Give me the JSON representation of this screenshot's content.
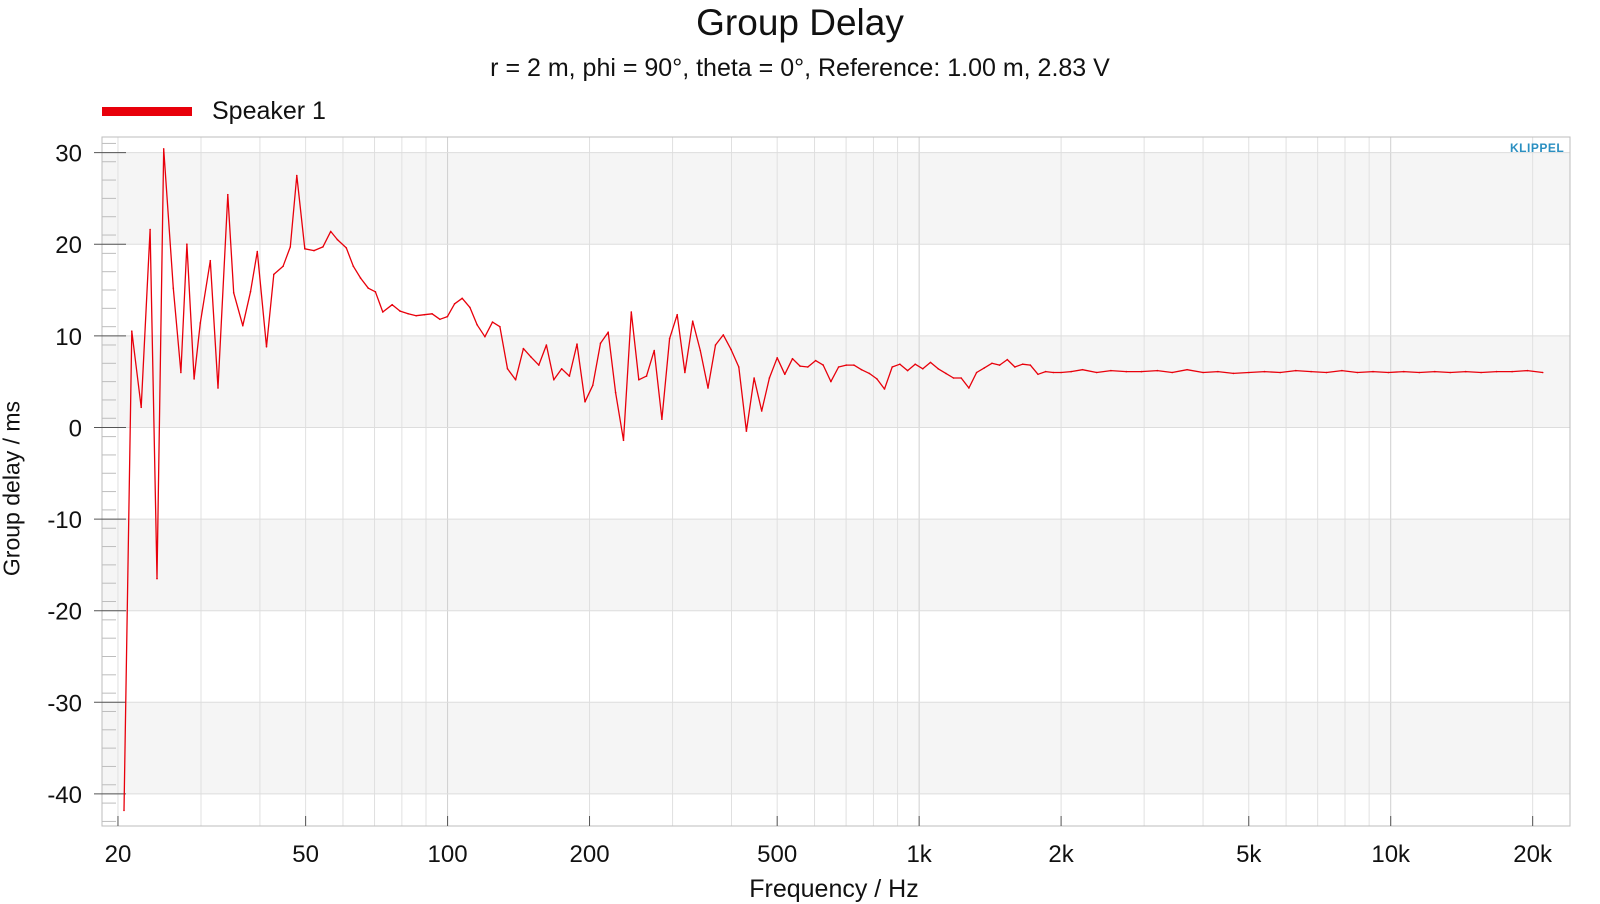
{
  "chart_data": {
    "type": "line",
    "title": "Group Delay",
    "subtitle": "r = 2 m, phi = 90°, theta = 0°, Reference: 1.00 m, 2.83 V",
    "xlabel": "Frequency / Hz",
    "ylabel": "Group delay / ms",
    "x_scale": "log",
    "xlim": [
      18.5,
      24000
    ],
    "ylim": [
      -43.5,
      31.7
    ],
    "grid": true,
    "legend_placement": "top-left",
    "logo_text": "KLIPPEL",
    "x_ticks": [
      {
        "value": 20,
        "label": "20"
      },
      {
        "value": 50,
        "label": "50"
      },
      {
        "value": 100,
        "label": "100"
      },
      {
        "value": 200,
        "label": "200"
      },
      {
        "value": 500,
        "label": "500"
      },
      {
        "value": 1000,
        "label": "1k"
      },
      {
        "value": 2000,
        "label": "2k"
      },
      {
        "value": 5000,
        "label": "5k"
      },
      {
        "value": 10000,
        "label": "10k"
      },
      {
        "value": 20000,
        "label": "20k"
      }
    ],
    "y_ticks": [
      {
        "value": 30,
        "label": "30"
      },
      {
        "value": 20,
        "label": "20"
      },
      {
        "value": 10,
        "label": "10"
      },
      {
        "value": 0,
        "label": "0"
      },
      {
        "value": -10,
        "label": "-10"
      },
      {
        "value": -20,
        "label": "-20"
      },
      {
        "value": -30,
        "label": "-30"
      },
      {
        "value": -40,
        "label": "-40"
      }
    ],
    "series": [
      {
        "name": "Speaker 1",
        "color": "#e8000b",
        "points": [
          [
            20.6,
            -41.8
          ],
          [
            21.4,
            10.5
          ],
          [
            22.4,
            2.2
          ],
          [
            23.4,
            21.6
          ],
          [
            24.2,
            -16.5
          ],
          [
            25.0,
            30.4
          ],
          [
            26.2,
            15.2
          ],
          [
            27.2,
            6.0
          ],
          [
            28.0,
            20.0
          ],
          [
            29.0,
            5.3
          ],
          [
            29.9,
            11.4
          ],
          [
            31.4,
            18.2
          ],
          [
            32.6,
            4.3
          ],
          [
            34.2,
            25.4
          ],
          [
            35.2,
            14.7
          ],
          [
            36.8,
            11.1
          ],
          [
            38.2,
            14.8
          ],
          [
            39.5,
            19.2
          ],
          [
            41.3,
            8.8
          ],
          [
            42.8,
            16.7
          ],
          [
            44.8,
            17.6
          ],
          [
            46.4,
            19.7
          ],
          [
            47.9,
            27.5
          ],
          [
            49.8,
            19.5
          ],
          [
            52.1,
            19.3
          ],
          [
            54.4,
            19.7
          ],
          [
            56.5,
            21.4
          ],
          [
            58.4,
            20.5
          ],
          [
            61.0,
            19.6
          ],
          [
            63.1,
            17.6
          ],
          [
            65.4,
            16.3
          ],
          [
            67.9,
            15.2
          ],
          [
            70.3,
            14.8
          ],
          [
            72.9,
            12.6
          ],
          [
            76.3,
            13.4
          ],
          [
            79.3,
            12.7
          ],
          [
            82.5,
            12.4
          ],
          [
            85.8,
            12.2
          ],
          [
            89.3,
            12.3
          ],
          [
            92.7,
            12.4
          ],
          [
            96.3,
            11.8
          ],
          [
            99.9,
            12.1
          ],
          [
            103.5,
            13.5
          ],
          [
            107.4,
            14.1
          ],
          [
            111.5,
            13.1
          ],
          [
            115.5,
            11.2
          ],
          [
            120.0,
            9.9
          ],
          [
            124.5,
            11.5
          ],
          [
            129.1,
            11.0
          ],
          [
            134.0,
            6.4
          ],
          [
            139.4,
            5.2
          ],
          [
            144.8,
            8.6
          ],
          [
            150.2,
            7.7
          ],
          [
            156.1,
            6.8
          ],
          [
            162.0,
            9.0
          ],
          [
            168.0,
            5.2
          ],
          [
            174.6,
            6.4
          ],
          [
            181.3,
            5.6
          ],
          [
            188.1,
            9.1
          ],
          [
            195.6,
            2.8
          ],
          [
            203.2,
            4.6
          ],
          [
            211.0,
            9.2
          ],
          [
            219.1,
            10.4
          ],
          [
            227.2,
            3.8
          ],
          [
            236.1,
            -1.4
          ],
          [
            245.3,
            12.6
          ],
          [
            254.4,
            5.2
          ],
          [
            264.1,
            5.6
          ],
          [
            274.3,
            8.4
          ],
          [
            284.8,
            0.9
          ],
          [
            295.7,
            9.7
          ],
          [
            306.8,
            12.3
          ],
          [
            318.6,
            6.0
          ],
          [
            331.0,
            11.6
          ],
          [
            343.5,
            8.4
          ],
          [
            356.7,
            4.3
          ],
          [
            370.0,
            9.0
          ],
          [
            384.4,
            10.1
          ],
          [
            399.2,
            8.5
          ],
          [
            414.5,
            6.6
          ],
          [
            430.3,
            -0.4
          ],
          [
            446.6,
            5.4
          ],
          [
            463.5,
            1.8
          ],
          [
            481.3,
            5.4
          ],
          [
            500.1,
            7.6
          ],
          [
            519.0,
            5.8
          ],
          [
            538.7,
            7.5
          ],
          [
            559.3,
            6.7
          ],
          [
            580.6,
            6.6
          ],
          [
            603.2,
            7.3
          ],
          [
            626.0,
            6.8
          ],
          [
            649.8,
            5.0
          ],
          [
            674.8,
            6.6
          ],
          [
            700.6,
            6.8
          ],
          [
            727.2,
            6.8
          ],
          [
            754.8,
            6.3
          ],
          [
            783.8,
            5.9
          ],
          [
            813.5,
            5.3
          ],
          [
            844.5,
            4.2
          ],
          [
            876.8,
            6.6
          ],
          [
            910.2,
            6.9
          ],
          [
            945.1,
            6.2
          ],
          [
            981.1,
            6.9
          ],
          [
            1018.0,
            6.4
          ],
          [
            1057.1,
            7.1
          ],
          [
            1097.7,
            6.4
          ],
          [
            1139.7,
            5.9
          ],
          [
            1182.9,
            5.4
          ],
          [
            1228.1,
            5.4
          ],
          [
            1274.9,
            4.3
          ],
          [
            1323.8,
            6.0
          ],
          [
            1374.6,
            6.5
          ],
          [
            1426.9,
            7.0
          ],
          [
            1481.3,
            6.8
          ],
          [
            1538.0,
            7.4
          ],
          [
            1596.5,
            6.6
          ],
          [
            1657.5,
            6.9
          ],
          [
            1720.6,
            6.8
          ],
          [
            1786.5,
            5.8
          ],
          [
            1854.5,
            6.1
          ],
          [
            1925.3,
            6.0
          ],
          [
            2000.0,
            6.0
          ],
          [
            2100.0,
            6.1
          ],
          [
            2220.0,
            6.3
          ],
          [
            2380.0,
            6.0
          ],
          [
            2550.0,
            6.2
          ],
          [
            2750.0,
            6.1
          ],
          [
            2960.0,
            6.1
          ],
          [
            3200.0,
            6.2
          ],
          [
            3440.0,
            6.0
          ],
          [
            3700.0,
            6.3
          ],
          [
            4000.0,
            6.0
          ],
          [
            4300.0,
            6.1
          ],
          [
            4640.0,
            5.9
          ],
          [
            5000.0,
            6.0
          ],
          [
            5400.0,
            6.1
          ],
          [
            5830.0,
            6.0
          ],
          [
            6290.0,
            6.2
          ],
          [
            6780.0,
            6.1
          ],
          [
            7310.0,
            6.0
          ],
          [
            7880.0,
            6.2
          ],
          [
            8500.0,
            6.0
          ],
          [
            9170.0,
            6.1
          ],
          [
            9890.0,
            6.0
          ],
          [
            10660.0,
            6.1
          ],
          [
            11500.0,
            6.0
          ],
          [
            12400.0,
            6.1
          ],
          [
            13370.0,
            6.0
          ],
          [
            14420.0,
            6.1
          ],
          [
            15550.0,
            6.0
          ],
          [
            16770.0,
            6.1
          ],
          [
            18090.0,
            6.1
          ],
          [
            19500.0,
            6.2
          ],
          [
            21000.0,
            6.0
          ]
        ]
      }
    ]
  }
}
